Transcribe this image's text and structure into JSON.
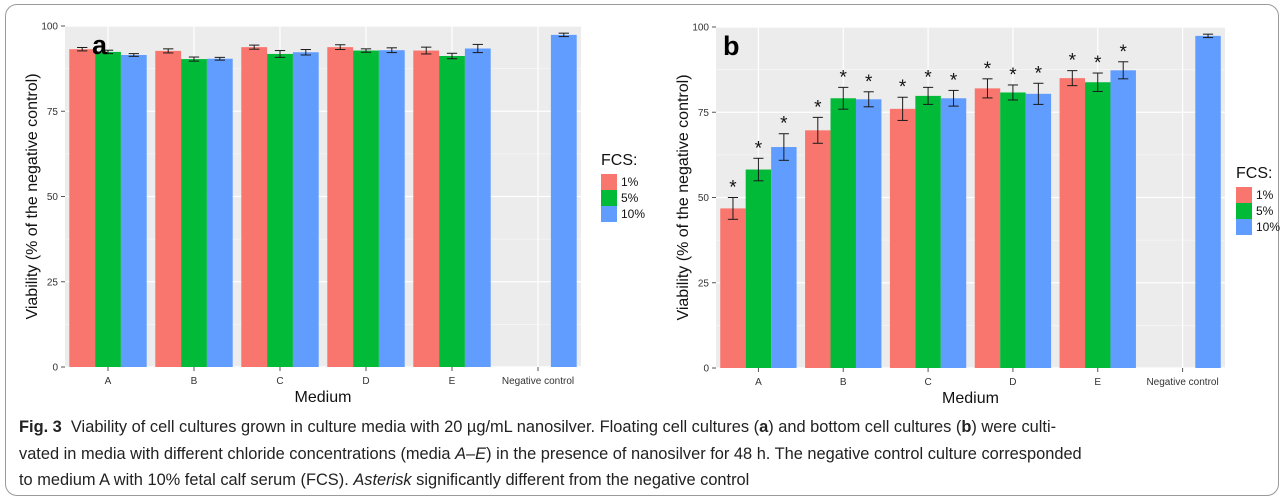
{
  "chart_data": [
    {
      "type": "bar",
      "panel_label": "a",
      "categories": [
        "A",
        "B",
        "C",
        "D",
        "E",
        "Negative control"
      ],
      "xlabel": "Medium",
      "ylabel": "Viability (% of the negative control)",
      "ylim": [
        0,
        100
      ],
      "yticks": [
        0,
        25,
        50,
        75,
        100
      ],
      "legend": {
        "title": "FCS:",
        "position": "right"
      },
      "grid": true,
      "series": [
        {
          "name": "1%",
          "color": "#F8766D",
          "values": [
            93.2,
            92.7,
            93.8,
            93.8,
            92.8,
            null
          ],
          "errors": [
            0.5,
            0.6,
            0.6,
            0.7,
            1.0,
            null
          ],
          "significant": [
            false,
            false,
            false,
            false,
            false,
            false
          ]
        },
        {
          "name": "5%",
          "color": "#00BA38",
          "values": [
            92.4,
            90.3,
            91.8,
            92.8,
            91.2,
            null
          ],
          "errors": [
            0.5,
            0.6,
            1.0,
            0.5,
            0.8,
            null
          ],
          "significant": [
            false,
            false,
            false,
            false,
            false,
            false
          ]
        },
        {
          "name": "10%",
          "color": "#619CFF",
          "values": [
            91.5,
            90.4,
            92.3,
            92.9,
            93.4,
            97.4
          ],
          "errors": [
            0.4,
            0.4,
            0.8,
            0.7,
            1.2,
            0.5
          ],
          "significant": [
            false,
            false,
            false,
            false,
            false,
            false
          ]
        }
      ]
    },
    {
      "type": "bar",
      "panel_label": "b",
      "categories": [
        "A",
        "B",
        "C",
        "D",
        "E",
        "Negative control"
      ],
      "xlabel": "Medium",
      "ylabel": "Viability (% of the negative control)",
      "ylim": [
        0,
        100
      ],
      "yticks": [
        0,
        25,
        50,
        75,
        100
      ],
      "legend": {
        "title": "FCS:",
        "position": "right"
      },
      "grid": true,
      "series": [
        {
          "name": "1%",
          "color": "#F8766D",
          "values": [
            46.8,
            69.7,
            76.0,
            82.0,
            85.0,
            null
          ],
          "errors": [
            3.2,
            3.8,
            3.4,
            2.8,
            2.2,
            null
          ],
          "significant": [
            true,
            true,
            true,
            true,
            true,
            false
          ]
        },
        {
          "name": "5%",
          "color": "#00BA38",
          "values": [
            58.2,
            79.1,
            79.8,
            80.8,
            83.8,
            null
          ],
          "errors": [
            3.3,
            3.2,
            2.5,
            2.2,
            2.7,
            null
          ],
          "significant": [
            true,
            true,
            true,
            true,
            true,
            false
          ]
        },
        {
          "name": "10%",
          "color": "#619CFF",
          "values": [
            64.8,
            78.8,
            79.1,
            80.4,
            87.3,
            97.4
          ],
          "errors": [
            3.9,
            2.2,
            2.3,
            3.1,
            2.5,
            0.5
          ],
          "significant": [
            true,
            true,
            true,
            true,
            true,
            false
          ]
        }
      ],
      "significance_marker": "*"
    }
  ],
  "caption": {
    "fig_label": "Fig. 3",
    "line1_a": "Viability of cell cultures grown in culture media with 20 µg/mL nanosilver. Floating cell cultures (",
    "a": "a",
    "line1_b": ") and bottom cell cultures (",
    "b": "b",
    "line1_c": ") were culti-",
    "line2_a": "vated in media with different chloride concentrations (media ",
    "media_range": "A–E",
    "line2_b": ") in the presence of nanosilver for 48 h. The negative control culture corresponded",
    "line3_a": "to medium A with 10% fetal calf serum (FCS). ",
    "asterisk_word": "Asterisk",
    "line3_b": " significantly different from the negative control"
  }
}
